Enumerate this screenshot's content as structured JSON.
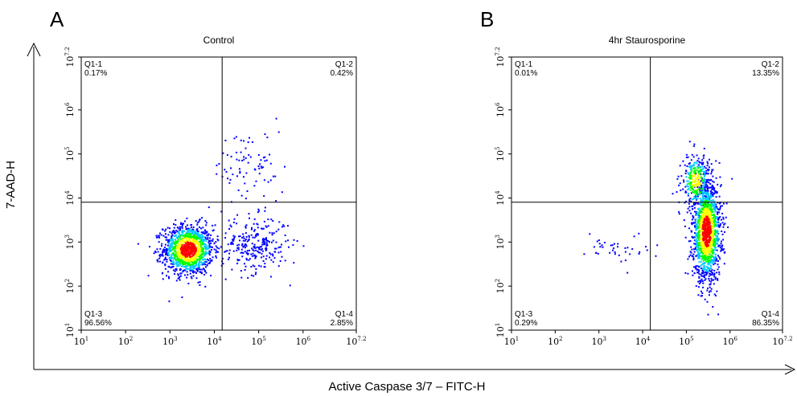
{
  "figure": {
    "ylabel": "7-AAD-H",
    "xlabel": "Active Caspase 3/7 – FITC-H"
  },
  "colors": {
    "gate": "#000000",
    "density_low": "#0000ff",
    "density_mid": "#00c8ff",
    "density_high_1": "#00ff00",
    "density_high_2": "#ffff00",
    "density_peak": "#ff0000"
  },
  "chart_data": [
    {
      "type": "scatter",
      "panel": "A",
      "title": "Control",
      "x_scale": "log",
      "y_scale": "log",
      "xlim": [
        10,
        15848932
      ],
      "ylim": [
        10,
        15848932
      ],
      "x_ticks": [
        "10^1",
        "10^2",
        "10^3",
        "10^4",
        "10^5",
        "10^6",
        "10^7.2"
      ],
      "y_ticks": [
        "10^1",
        "10^2",
        "10^3",
        "10^4",
        "10^5",
        "10^6",
        "10^7.2"
      ],
      "gate": {
        "x": 15000,
        "y": 8000
      },
      "quadrants": [
        {
          "name": "Q1-1",
          "percent": "0.17%",
          "position": "top-left"
        },
        {
          "name": "Q1-2",
          "percent": "0.42%",
          "position": "top-right"
        },
        {
          "name": "Q1-3",
          "percent": "96.56%",
          "position": "bottom-left"
        },
        {
          "name": "Q1-4",
          "percent": "2.85%",
          "position": "bottom-right"
        }
      ],
      "clusters": [
        {
          "center": [
            2500,
            700
          ],
          "spread": [
            0.28,
            0.28
          ],
          "count": 1300,
          "peak": "red"
        },
        {
          "center": [
            80000,
            900
          ],
          "spread": [
            0.38,
            0.32
          ],
          "count": 260,
          "peak": "blue"
        },
        {
          "center": [
            60000,
            50000
          ],
          "spread": [
            0.4,
            0.45
          ],
          "count": 80,
          "peak": "blue"
        }
      ]
    },
    {
      "type": "scatter",
      "panel": "B",
      "title": "4hr Staurosporine",
      "x_scale": "log",
      "y_scale": "log",
      "xlim": [
        10,
        15848932
      ],
      "ylim": [
        10,
        15848932
      ],
      "x_ticks": [
        "10^1",
        "10^2",
        "10^3",
        "10^4",
        "10^5",
        "10^6",
        "10^7.2"
      ],
      "y_ticks": [
        "10^1",
        "10^2",
        "10^3",
        "10^4",
        "10^5",
        "10^6",
        "10^7.2"
      ],
      "gate": {
        "x": 15000,
        "y": 8000
      },
      "quadrants": [
        {
          "name": "Q1-1",
          "percent": "0.01%",
          "position": "top-left"
        },
        {
          "name": "Q1-2",
          "percent": "13.35%",
          "position": "top-right"
        },
        {
          "name": "Q1-3",
          "percent": "0.29%",
          "position": "bottom-left"
        },
        {
          "name": "Q1-4",
          "percent": "86.35%",
          "position": "bottom-right"
        }
      ],
      "clusters": [
        {
          "center": [
            280000,
            1800
          ],
          "spread": [
            0.16,
            0.55
          ],
          "count": 1500,
          "peak": "red"
        },
        {
          "center": [
            160000,
            25000
          ],
          "spread": [
            0.16,
            0.3
          ],
          "count": 320,
          "peak": "yellow"
        },
        {
          "center": [
            2500,
            800
          ],
          "spread": [
            0.35,
            0.18
          ],
          "count": 40,
          "peak": "blue"
        }
      ]
    }
  ]
}
